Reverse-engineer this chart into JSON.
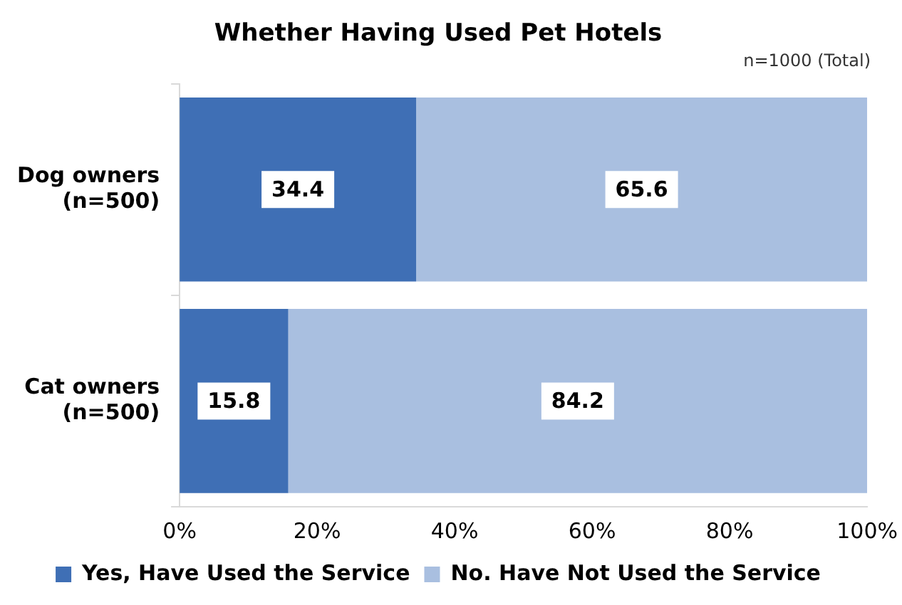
{
  "chart_data": {
    "type": "bar",
    "title": "Whether Having Used Pet Hotels",
    "subtitle": "n=1000 (Total)",
    "orientation": "horizontal",
    "stacked": true,
    "categories": [
      "Dog owners (n=500)",
      "Cat owners (n=500)"
    ],
    "series": [
      {
        "name": "Yes, Have Used the Service",
        "color": "#3f6fb5",
        "values": [
          34.4,
          15.8
        ]
      },
      {
        "name": "No. Have Not Used the Service",
        "color": "#a9bfe0",
        "values": [
          65.6,
          84.2
        ]
      }
    ],
    "xlim": [
      0,
      100
    ],
    "xticks": [
      {
        "value": 0,
        "label": "0%"
      },
      {
        "value": 20,
        "label": "20%"
      },
      {
        "value": 40,
        "label": "40%"
      },
      {
        "value": 60,
        "label": "60%"
      },
      {
        "value": 80,
        "label": "80%"
      },
      {
        "value": 100,
        "label": "100%"
      }
    ],
    "grid": false,
    "legend": "bottom",
    "data_labels": true
  }
}
